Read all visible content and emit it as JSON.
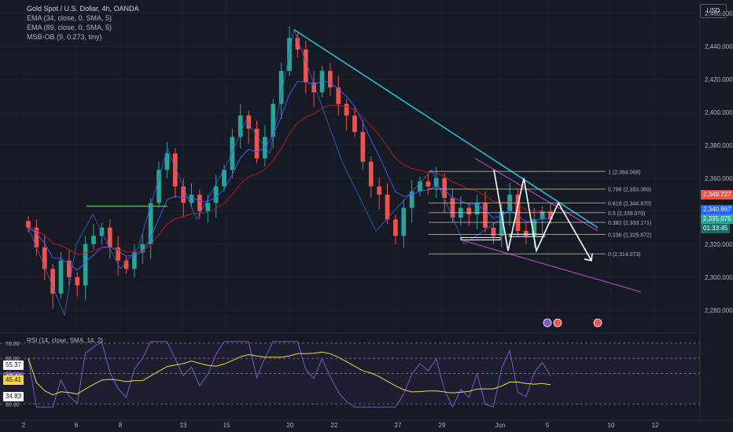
{
  "legend": {
    "symbol": "Gold Spot / U.S. Dollar, 4h, OANDA",
    "ema1": "EMA (34, close, 0, SMA, 5)",
    "ema2": "EMA (89, close, 0, SMA, 5)",
    "msb": "MSB-OB (9, 0.273, tiny)"
  },
  "currency_button": "USD",
  "rsi_label": "RSI (14, close, SMA, 14, 2)",
  "colors": {
    "bg": "#161a25",
    "up": "#26a69a",
    "down": "#ef5350",
    "ema34": "#3d5afe",
    "ema89": "#b71c1c",
    "trend": "#26c6da",
    "channel": "#ab47bc",
    "fib": "#c9c9a3",
    "rsi": "#7e57c2",
    "rsi_ma": "#f5d547"
  },
  "price_badges": [
    {
      "text": "2,349.727",
      "price": 2349.727,
      "color": "#ef5350"
    },
    {
      "text": "2,340.867",
      "price": 2340.867,
      "color": "#2962ff"
    },
    {
      "text": "2,335.075",
      "price": 2335.075,
      "color": "#26a69a"
    },
    {
      "text": "01:33:45",
      "price": 2329.5,
      "color": "#1a6e63"
    }
  ],
  "rsi_badges": [
    {
      "text": "55.37",
      "value": 55.37,
      "bg": "#ffffff",
      "fg": "#131722"
    },
    {
      "text": "47.46",
      "value": 47.46,
      "bg": "#7e57c2",
      "fg": "#ffffff"
    },
    {
      "text": "45.41",
      "value": 45.41,
      "bg": "#f5d547",
      "fg": "#131722"
    },
    {
      "text": "34.83",
      "value": 34.83,
      "bg": "#ffffff",
      "fg": "#131722"
    }
  ],
  "fib_levels": [
    {
      "label": "1 (2,364.068)",
      "price": 2364.068
    },
    {
      "label": "0.786 (2,353.369)",
      "price": 2353.369
    },
    {
      "label": "0.618 (2,344.970)",
      "price": 2344.97
    },
    {
      "label": "0.5 (2,339.070)",
      "price": 2339.07
    },
    {
      "label": "0.382 (2,333.171)",
      "price": 2333.171
    },
    {
      "label": "0.236 (2,325.872)",
      "price": 2325.872
    },
    {
      "label": "0 (2,314.073)",
      "price": 2314.073
    }
  ],
  "chart_data": {
    "type": "candlestick",
    "title": "Gold Spot / U.S. Dollar, 4h, OANDA",
    "price_axis": {
      "ticks": [
        2280,
        2300,
        2320,
        2340,
        2360,
        2380,
        2400,
        2420,
        2440,
        2460
      ],
      "tick_labels": [
        "2,280.000",
        "2,300.000",
        "2,320.000",
        "2,340.000",
        "2,360.000",
        "2,380.000",
        "2,400.000",
        "2,420.000",
        "2,440.000",
        "2,460.000"
      ],
      "ylim": [
        2268,
        2468
      ]
    },
    "time_axis": {
      "labels": [
        "2",
        "6",
        "8",
        "13",
        "15",
        "20",
        "22",
        "27",
        "29",
        "Jun",
        "5",
        "10",
        "12"
      ]
    },
    "ohlc_close_path": [
      2330,
      2318,
      2305,
      2290,
      2310,
      2300,
      2295,
      2320,
      2325,
      2330,
      2318,
      2310,
      2305,
      2315,
      2320,
      2345,
      2365,
      2375,
      2355,
      2345,
      2350,
      2340,
      2345,
      2355,
      2365,
      2385,
      2398,
      2390,
      2372,
      2385,
      2405,
      2425,
      2445,
      2438,
      2418,
      2412,
      2425,
      2415,
      2405,
      2398,
      2388,
      2370,
      2355,
      2350,
      2335,
      2325,
      2342,
      2352,
      2358,
      2355,
      2360,
      2348,
      2336,
      2342,
      2338,
      2345,
      2330,
      2325,
      2340,
      2350,
      2328,
      2325,
      2335,
      2340,
      2335
    ],
    "rsi": {
      "levels": [
        70,
        60,
        50,
        30
      ],
      "level_labels": [
        "70.00",
        "60.00",
        "50.00",
        "30.00"
      ],
      "ylim": [
        26,
        72
      ]
    }
  }
}
